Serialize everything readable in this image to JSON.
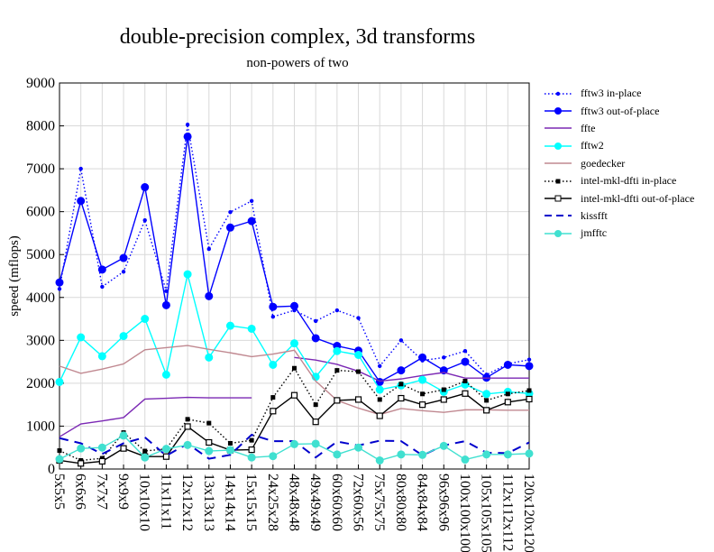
{
  "chart_data": {
    "type": "line",
    "title": "double-precision complex, 3d transforms",
    "subtitle": "non-powers of two",
    "ylabel": "speed (mflops)",
    "xlabel": "",
    "ylim": [
      0,
      9000
    ],
    "yticks": [
      0,
      1000,
      2000,
      3000,
      4000,
      5000,
      6000,
      7000,
      8000,
      9000
    ],
    "grid": true,
    "legend_position": "top-right, outside plot",
    "categories": [
      "5x5x5",
      "6x6x6",
      "7x7x7",
      "9x9x9",
      "10x10x10",
      "11x11x11",
      "12x12x12",
      "13x13x13",
      "14x14x14",
      "15x15x15",
      "24x25x28",
      "48x48x48",
      "49x49x49",
      "60x60x60",
      "72x60x56",
      "75x75x75",
      "80x80x80",
      "84x84x84",
      "96x96x96",
      "100x100x100",
      "105x105x105",
      "112x112x112",
      "120x120x120"
    ],
    "series": [
      {
        "name": "fftw3 in-place",
        "color": "#0000ff",
        "line": "dotted",
        "marker": "dot",
        "values": [
          4200,
          7000,
          4250,
          4600,
          5800,
          4150,
          8030,
          5130,
          5990,
          6250,
          3550,
          3700,
          3450,
          3700,
          3520,
          2400,
          3000,
          2530,
          2600,
          2750,
          2200,
          2450,
          2550
        ]
      },
      {
        "name": "fftw3 out-of-place",
        "color": "#0000ff",
        "line": "solid",
        "marker": "circle",
        "values": [
          4350,
          6250,
          4650,
          4920,
          6570,
          3820,
          7750,
          4030,
          5630,
          5780,
          3780,
          3800,
          3050,
          2870,
          2760,
          2030,
          2300,
          2600,
          2300,
          2500,
          2130,
          2430,
          2400
        ]
      },
      {
        "name": "ffte",
        "color": "#7b28b4",
        "line": "solid",
        "marker": "none",
        "values": [
          750,
          1050,
          1120,
          1200,
          1630,
          1650,
          1670,
          1660,
          1660,
          1660,
          null,
          2600,
          2540,
          2440,
          2280,
          2050,
          2100,
          2180,
          2250,
          2120,
          2120,
          2120,
          2120
        ]
      },
      {
        "name": "fftw2",
        "color": "#00ffff",
        "line": "solid",
        "marker": "circle",
        "values": [
          2030,
          3070,
          2630,
          3100,
          3500,
          2200,
          4540,
          2600,
          3340,
          3270,
          2430,
          2930,
          2150,
          2750,
          2660,
          1850,
          1950,
          2080,
          1800,
          1970,
          1750,
          1800,
          1760
        ]
      },
      {
        "name": "goedecker",
        "color": "#c08890",
        "line": "solid",
        "marker": "none",
        "values": [
          2400,
          2230,
          2330,
          2450,
          2780,
          2830,
          2880,
          2790,
          2710,
          2620,
          2680,
          2770,
          2050,
          1600,
          1420,
          1270,
          1410,
          1360,
          1320,
          1380,
          1380,
          1370,
          1370
        ]
      },
      {
        "name": "intel-mkl-dfti in-place",
        "color": "#000000",
        "line": "dotted",
        "marker": "filled-square",
        "values": [
          430,
          200,
          250,
          850,
          420,
          470,
          1160,
          1070,
          600,
          670,
          1670,
          2350,
          1500,
          2300,
          2270,
          1620,
          1980,
          1750,
          1850,
          2050,
          1600,
          1750,
          1830
        ]
      },
      {
        "name": "intel-mkl-dfti out-of-place",
        "color": "#000000",
        "line": "solid",
        "marker": "open-square",
        "values": [
          200,
          130,
          180,
          480,
          290,
          290,
          990,
          620,
          440,
          450,
          1350,
          1720,
          1100,
          1600,
          1620,
          1240,
          1650,
          1500,
          1620,
          1760,
          1370,
          1560,
          1630
        ]
      },
      {
        "name": "kissfft",
        "color": "#0000cc",
        "line": "dashed",
        "marker": "none",
        "values": [
          720,
          600,
          350,
          600,
          740,
          310,
          590,
          240,
          330,
          800,
          650,
          650,
          270,
          640,
          550,
          660,
          650,
          320,
          550,
          650,
          380,
          370,
          620
        ]
      },
      {
        "name": "jmfftc",
        "color": "#40e0d0",
        "line": "solid",
        "marker": "circle",
        "values": [
          230,
          480,
          500,
          780,
          270,
          470,
          560,
          420,
          440,
          270,
          300,
          580,
          590,
          340,
          500,
          200,
          340,
          330,
          540,
          220,
          340,
          340,
          360
        ]
      }
    ]
  }
}
